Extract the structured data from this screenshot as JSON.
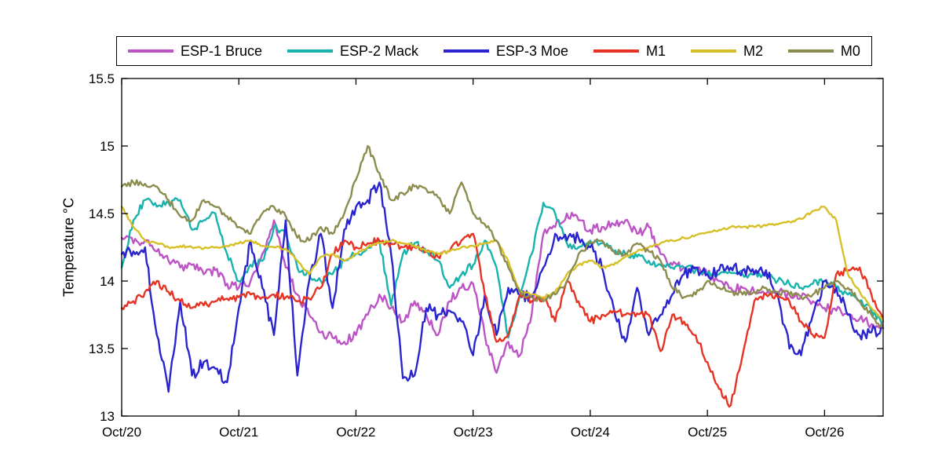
{
  "chart_data": {
    "type": "line",
    "title": "",
    "xlabel": "",
    "ylabel": "Temperature °C",
    "grid": false,
    "legend_position": "top-horizontal",
    "background": "#ffffff",
    "axis_color": "#000000",
    "xlim": [
      20,
      26.5
    ],
    "ylim": [
      13,
      15.5
    ],
    "xticks": [
      20,
      21,
      22,
      23,
      24,
      25,
      26
    ],
    "xtick_labels": [
      "Oct/20",
      "Oct/21",
      "Oct/22",
      "Oct/23",
      "Oct/24",
      "Oct/25",
      "Oct/26"
    ],
    "yticks": [
      13,
      13.5,
      14,
      14.5,
      15,
      15.5
    ],
    "ytick_labels": [
      "13",
      "13.5",
      "14",
      "14.5",
      "15",
      "15.5"
    ],
    "x_unit": "date (October, day fraction)",
    "x": [
      20.0,
      20.1,
      20.2,
      20.3,
      20.4,
      20.5,
      20.6,
      20.7,
      20.8,
      20.9,
      21.0,
      21.1,
      21.2,
      21.3,
      21.4,
      21.5,
      21.6,
      21.7,
      21.8,
      21.9,
      22.0,
      22.1,
      22.2,
      22.3,
      22.4,
      22.5,
      22.6,
      22.7,
      22.8,
      22.9,
      23.0,
      23.1,
      23.2,
      23.3,
      23.4,
      23.5,
      23.6,
      23.7,
      23.8,
      23.9,
      24.0,
      24.1,
      24.2,
      24.3,
      24.4,
      24.5,
      24.6,
      24.7,
      24.8,
      24.9,
      25.0,
      25.1,
      25.2,
      25.3,
      25.4,
      25.5,
      25.6,
      25.7,
      25.8,
      25.9,
      26.0,
      26.1,
      26.2,
      26.3,
      26.4,
      26.5
    ],
    "series": [
      {
        "name": "ESP-1 Bruce",
        "color": "#bd54c6",
        "values": [
          14.32,
          14.28,
          14.3,
          14.22,
          14.15,
          14.1,
          14.12,
          14.05,
          14.08,
          13.98,
          13.95,
          14.0,
          14.2,
          14.45,
          14.1,
          13.9,
          13.75,
          13.62,
          13.58,
          13.55,
          13.6,
          13.75,
          13.9,
          13.8,
          13.7,
          13.85,
          13.75,
          13.6,
          13.85,
          13.95,
          13.98,
          13.6,
          13.32,
          13.55,
          13.45,
          13.75,
          14.35,
          14.4,
          14.5,
          14.45,
          14.38,
          14.4,
          14.42,
          14.45,
          14.35,
          14.4,
          14.2,
          14.12,
          14.1,
          14.08,
          14.05,
          14.0,
          13.95,
          13.95,
          13.92,
          13.9,
          13.92,
          13.9,
          13.88,
          13.85,
          13.8,
          13.78,
          13.75,
          13.72,
          13.68,
          13.65
        ]
      },
      {
        "name": "ESP-2 Mack",
        "color": "#17b3ac",
        "values": [
          14.1,
          14.45,
          14.6,
          14.55,
          14.58,
          14.6,
          14.38,
          14.45,
          14.5,
          14.2,
          14.0,
          14.12,
          14.15,
          14.4,
          14.35,
          14.1,
          14.05,
          14.0,
          14.05,
          14.15,
          14.2,
          14.25,
          14.3,
          13.82,
          14.2,
          14.28,
          14.22,
          14.15,
          13.95,
          14.05,
          14.12,
          14.3,
          14.1,
          13.58,
          13.9,
          14.2,
          14.58,
          14.5,
          14.28,
          14.25,
          14.3,
          14.28,
          14.22,
          14.2,
          14.18,
          14.15,
          14.12,
          14.1,
          14.1,
          14.08,
          14.05,
          14.05,
          14.06,
          14.05,
          14.05,
          14.04,
          14.0,
          13.98,
          13.95,
          13.98,
          14.0,
          13.95,
          13.9,
          13.85,
          13.78,
          13.7
        ]
      },
      {
        "name": "ESP-3 Moe",
        "color": "#2a24cf",
        "values": [
          14.2,
          14.22,
          14.25,
          13.6,
          13.18,
          13.85,
          13.3,
          13.4,
          13.35,
          13.25,
          13.8,
          14.3,
          13.95,
          13.6,
          14.45,
          13.3,
          14.0,
          14.35,
          13.8,
          14.38,
          14.55,
          14.6,
          14.73,
          14.2,
          13.28,
          13.3,
          13.8,
          13.75,
          13.78,
          13.7,
          13.45,
          13.9,
          13.6,
          13.95,
          13.9,
          13.88,
          14.1,
          14.35,
          14.3,
          14.32,
          14.25,
          14.1,
          13.8,
          13.55,
          13.95,
          13.6,
          13.75,
          13.9,
          14.05,
          14.1,
          14.05,
          14.08,
          14.1,
          14.08,
          14.05,
          14.08,
          13.9,
          13.5,
          13.45,
          13.75,
          14.0,
          13.95,
          13.75,
          13.6,
          13.62,
          13.65
        ]
      },
      {
        "name": "M1",
        "color": "#e63323",
        "values": [
          13.8,
          13.85,
          13.92,
          14.0,
          13.92,
          13.85,
          13.8,
          13.82,
          13.85,
          13.87,
          13.88,
          13.9,
          13.88,
          13.9,
          13.88,
          13.85,
          13.87,
          13.95,
          14.2,
          14.3,
          14.25,
          14.28,
          14.3,
          14.28,
          14.25,
          14.25,
          14.22,
          14.18,
          14.22,
          14.3,
          14.35,
          13.9,
          13.55,
          13.6,
          13.9,
          13.85,
          13.88,
          13.7,
          14.0,
          13.85,
          13.7,
          13.75,
          13.78,
          13.75,
          13.76,
          13.75,
          13.48,
          13.75,
          13.7,
          13.6,
          13.4,
          13.2,
          13.08,
          13.45,
          13.85,
          13.9,
          13.88,
          13.85,
          13.7,
          13.6,
          13.58,
          14.05,
          14.08,
          14.1,
          13.9,
          13.7
        ]
      },
      {
        "name": "M2",
        "color": "#d6bf27",
        "values": [
          14.55,
          14.4,
          14.3,
          14.28,
          14.25,
          14.26,
          14.25,
          14.24,
          14.25,
          14.26,
          14.28,
          14.3,
          14.26,
          14.25,
          14.24,
          14.15,
          14.05,
          14.18,
          14.2,
          14.15,
          14.2,
          14.25,
          14.28,
          14.3,
          14.28,
          14.26,
          14.22,
          14.2,
          14.22,
          14.25,
          14.26,
          14.28,
          14.3,
          14.15,
          13.92,
          13.9,
          13.88,
          13.92,
          14.05,
          14.12,
          14.15,
          14.1,
          14.12,
          14.18,
          14.22,
          14.25,
          14.28,
          14.3,
          14.32,
          14.34,
          14.36,
          14.38,
          14.4,
          14.4,
          14.4,
          14.41,
          14.42,
          14.44,
          14.46,
          14.52,
          14.55,
          14.45,
          14.05,
          13.92,
          13.8,
          13.7
        ]
      },
      {
        "name": "M0",
        "color": "#8c8c4e",
        "values": [
          14.7,
          14.73,
          14.72,
          14.7,
          14.6,
          14.48,
          14.45,
          14.6,
          14.55,
          14.48,
          14.4,
          14.35,
          14.5,
          14.55,
          14.48,
          14.32,
          14.3,
          14.4,
          14.35,
          14.5,
          14.75,
          15.0,
          14.8,
          14.6,
          14.65,
          14.7,
          14.68,
          14.62,
          14.5,
          14.73,
          14.5,
          14.42,
          14.3,
          14.1,
          13.92,
          13.88,
          13.85,
          13.9,
          14.0,
          14.2,
          14.28,
          14.3,
          14.22,
          14.2,
          14.28,
          14.22,
          14.15,
          13.95,
          13.88,
          13.9,
          14.0,
          13.95,
          13.92,
          13.9,
          13.92,
          13.95,
          13.92,
          13.9,
          13.88,
          13.9,
          13.95,
          14.0,
          13.95,
          13.85,
          13.75,
          13.65
        ]
      }
    ]
  }
}
